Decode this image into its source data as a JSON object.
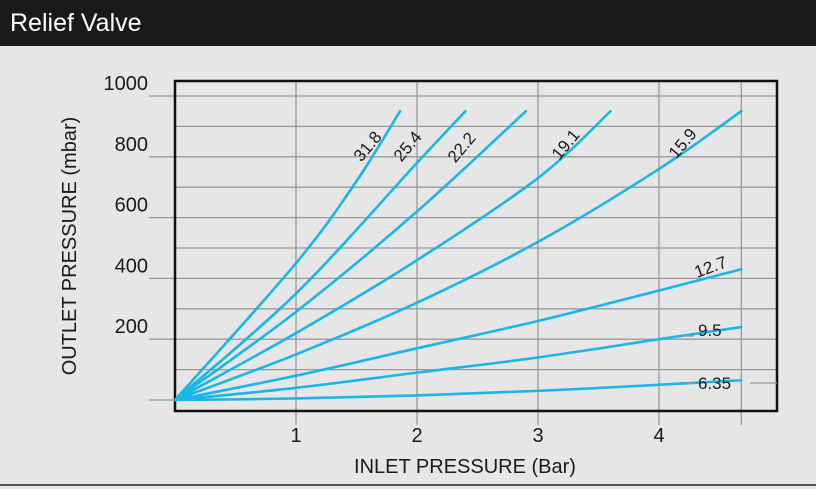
{
  "header": {
    "title": "Relief Valve"
  },
  "colors": {
    "series": "#1ab6e6",
    "grid": "#9a9a9a",
    "frame": "#111111",
    "background": "#e6e6e6",
    "title_bar": "#1a1a1a"
  },
  "chart_data": {
    "type": "line",
    "title": "",
    "xlabel": "INLET PRESSURE (Bar)",
    "ylabel": "OUTLET PRESSURE (mbar)",
    "xlim": [
      0,
      5.2
    ],
    "ylim": [
      -50,
      1000
    ],
    "x_ticks": [
      1,
      2,
      3,
      4
    ],
    "y_ticks": [
      200,
      400,
      600,
      800,
      1000
    ],
    "grid": true,
    "series": [
      {
        "name": "31.8",
        "x": [
          0,
          1.0,
          1.5,
          1.86
        ],
        "y": [
          0,
          450,
          720,
          950
        ]
      },
      {
        "name": "25.4",
        "x": [
          0,
          1.0,
          2.0,
          2.4
        ],
        "y": [
          0,
          350,
          780,
          950
        ]
      },
      {
        "name": "22.2",
        "x": [
          0,
          1.0,
          2.0,
          2.9
        ],
        "y": [
          0,
          290,
          620,
          950
        ]
      },
      {
        "name": "19.1",
        "x": [
          0,
          1.0,
          2.0,
          3.0,
          3.6
        ],
        "y": [
          0,
          220,
          460,
          730,
          950
        ]
      },
      {
        "name": "15.9",
        "x": [
          0,
          1.0,
          2.0,
          3.0,
          4.0,
          4.68
        ],
        "y": [
          0,
          150,
          320,
          520,
          760,
          950
        ]
      },
      {
        "name": "12.7",
        "x": [
          0,
          1.0,
          2.0,
          3.0,
          4.0,
          4.68
        ],
        "y": [
          0,
          80,
          170,
          260,
          360,
          430
        ]
      },
      {
        "name": "9.5",
        "x": [
          0,
          1.0,
          2.0,
          3.0,
          4.0,
          4.68
        ],
        "y": [
          0,
          40,
          90,
          140,
          200,
          240
        ]
      },
      {
        "name": "6.35",
        "x": [
          0,
          1.0,
          2.0,
          3.0,
          4.0,
          4.68
        ],
        "y": [
          0,
          5,
          15,
          30,
          50,
          65
        ]
      }
    ]
  }
}
